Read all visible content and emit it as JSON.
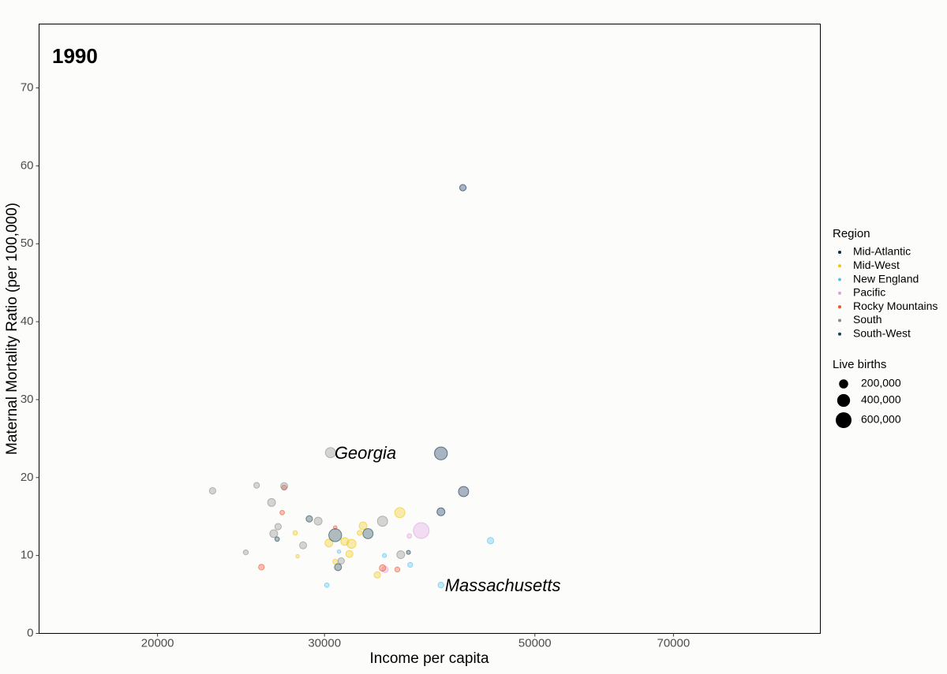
{
  "chart_data": {
    "type": "scatter",
    "title": "1990",
    "x_label": "Income per capita",
    "y_label": "Maternal Mortality Ratio (per 100,000)",
    "xscale": "log",
    "xlim": [
      15000,
      100000
    ],
    "ylim": [
      0,
      78.2
    ],
    "xticks": [
      20000,
      30000,
      50000,
      70000
    ],
    "yticks": [
      0,
      10,
      20,
      30,
      40,
      50,
      60,
      70
    ],
    "grid": false,
    "legend_title": "Region",
    "legend_position": "right",
    "size_legend": {
      "title": "Live births",
      "values": [
        {
          "value": 200000,
          "label": "200,000"
        },
        {
          "value": 400000,
          "label": "400,000"
        },
        {
          "value": 600000,
          "label": "600,000"
        }
      ]
    },
    "series": [
      {
        "name": "Mid-Atlantic",
        "color": "#0b2a4f",
        "x": [
          41980,
          39800,
          42050,
          39800
        ],
        "y": [
          57.2,
          23.1,
          18.2,
          15.6
        ],
        "sizes": [
          100000,
          400000,
          250000,
          150000
        ]
      },
      {
        "name": "Mid-West",
        "color": "#f2c514",
        "x": [
          27940,
          28100,
          30320,
          31510,
          32030,
          31870,
          30790,
          32940,
          32670,
          36020,
          34100
        ],
        "y": [
          12.9,
          9.9,
          11.6,
          11.8,
          11.5,
          10.2,
          9.2,
          13.8,
          12.9,
          15.5,
          7.5
        ],
        "sizes": [
          50000,
          30000,
          150000,
          150000,
          200000,
          120000,
          60000,
          150000,
          60000,
          250000,
          100000
        ]
      },
      {
        "name": "New England",
        "color": "#4cc3f5",
        "x": [
          39800,
          31070,
          30170,
          34700,
          36940,
          44890
        ],
        "y": [
          6.2,
          10.5,
          6.2,
          10.0,
          8.8,
          11.9
        ],
        "sizes": [
          80000,
          30000,
          50000,
          40000,
          60000,
          100000
        ],
        "labels": [
          "Massachusetts",
          null,
          null,
          null,
          null,
          null
        ]
      },
      {
        "name": "Pacific",
        "color": "#dd9fe3",
        "x": [
          37940,
          36860,
          34750
        ],
        "y": [
          13.2,
          12.5,
          8.2
        ],
        "sizes": [
          600000,
          50000,
          100000
        ]
      },
      {
        "name": "Rocky Mountains",
        "color": "#f2502a",
        "x": [
          27200,
          27070,
          25740,
          30790,
          34540,
          35800
        ],
        "y": [
          18.7,
          15.5,
          8.5,
          13.6,
          8.4,
          8.2
        ],
        "sizes": [
          60000,
          50000,
          80000,
          30000,
          100000,
          60000
        ]
      },
      {
        "name": "South",
        "color": "#8a8a8a",
        "x": [
          30440,
          22860,
          25440,
          27200,
          26380,
          26800,
          26520,
          24780,
          28480,
          29540,
          31240,
          34540,
          36100
        ],
        "y": [
          23.2,
          18.3,
          19.0,
          18.9,
          16.8,
          13.7,
          12.8,
          10.4,
          11.3,
          14.4,
          9.3,
          14.4,
          10.1
        ],
        "sizes": [
          250000,
          100000,
          80000,
          120000,
          150000,
          100000,
          150000,
          60000,
          120000,
          150000,
          100000,
          250000,
          150000
        ],
        "labels": [
          "Georgia",
          null,
          null,
          null,
          null,
          null,
          null,
          null,
          null,
          null,
          null,
          null,
          null
        ]
      },
      {
        "name": "South-West",
        "color": "#1e4050",
        "x": [
          26740,
          28910,
          30790,
          31000,
          33340,
          36780
        ],
        "y": [
          12.1,
          14.7,
          12.6,
          8.5,
          12.8,
          10.4
        ],
        "sizes": [
          50000,
          100000,
          400000,
          120000,
          250000,
          40000
        ]
      }
    ]
  }
}
